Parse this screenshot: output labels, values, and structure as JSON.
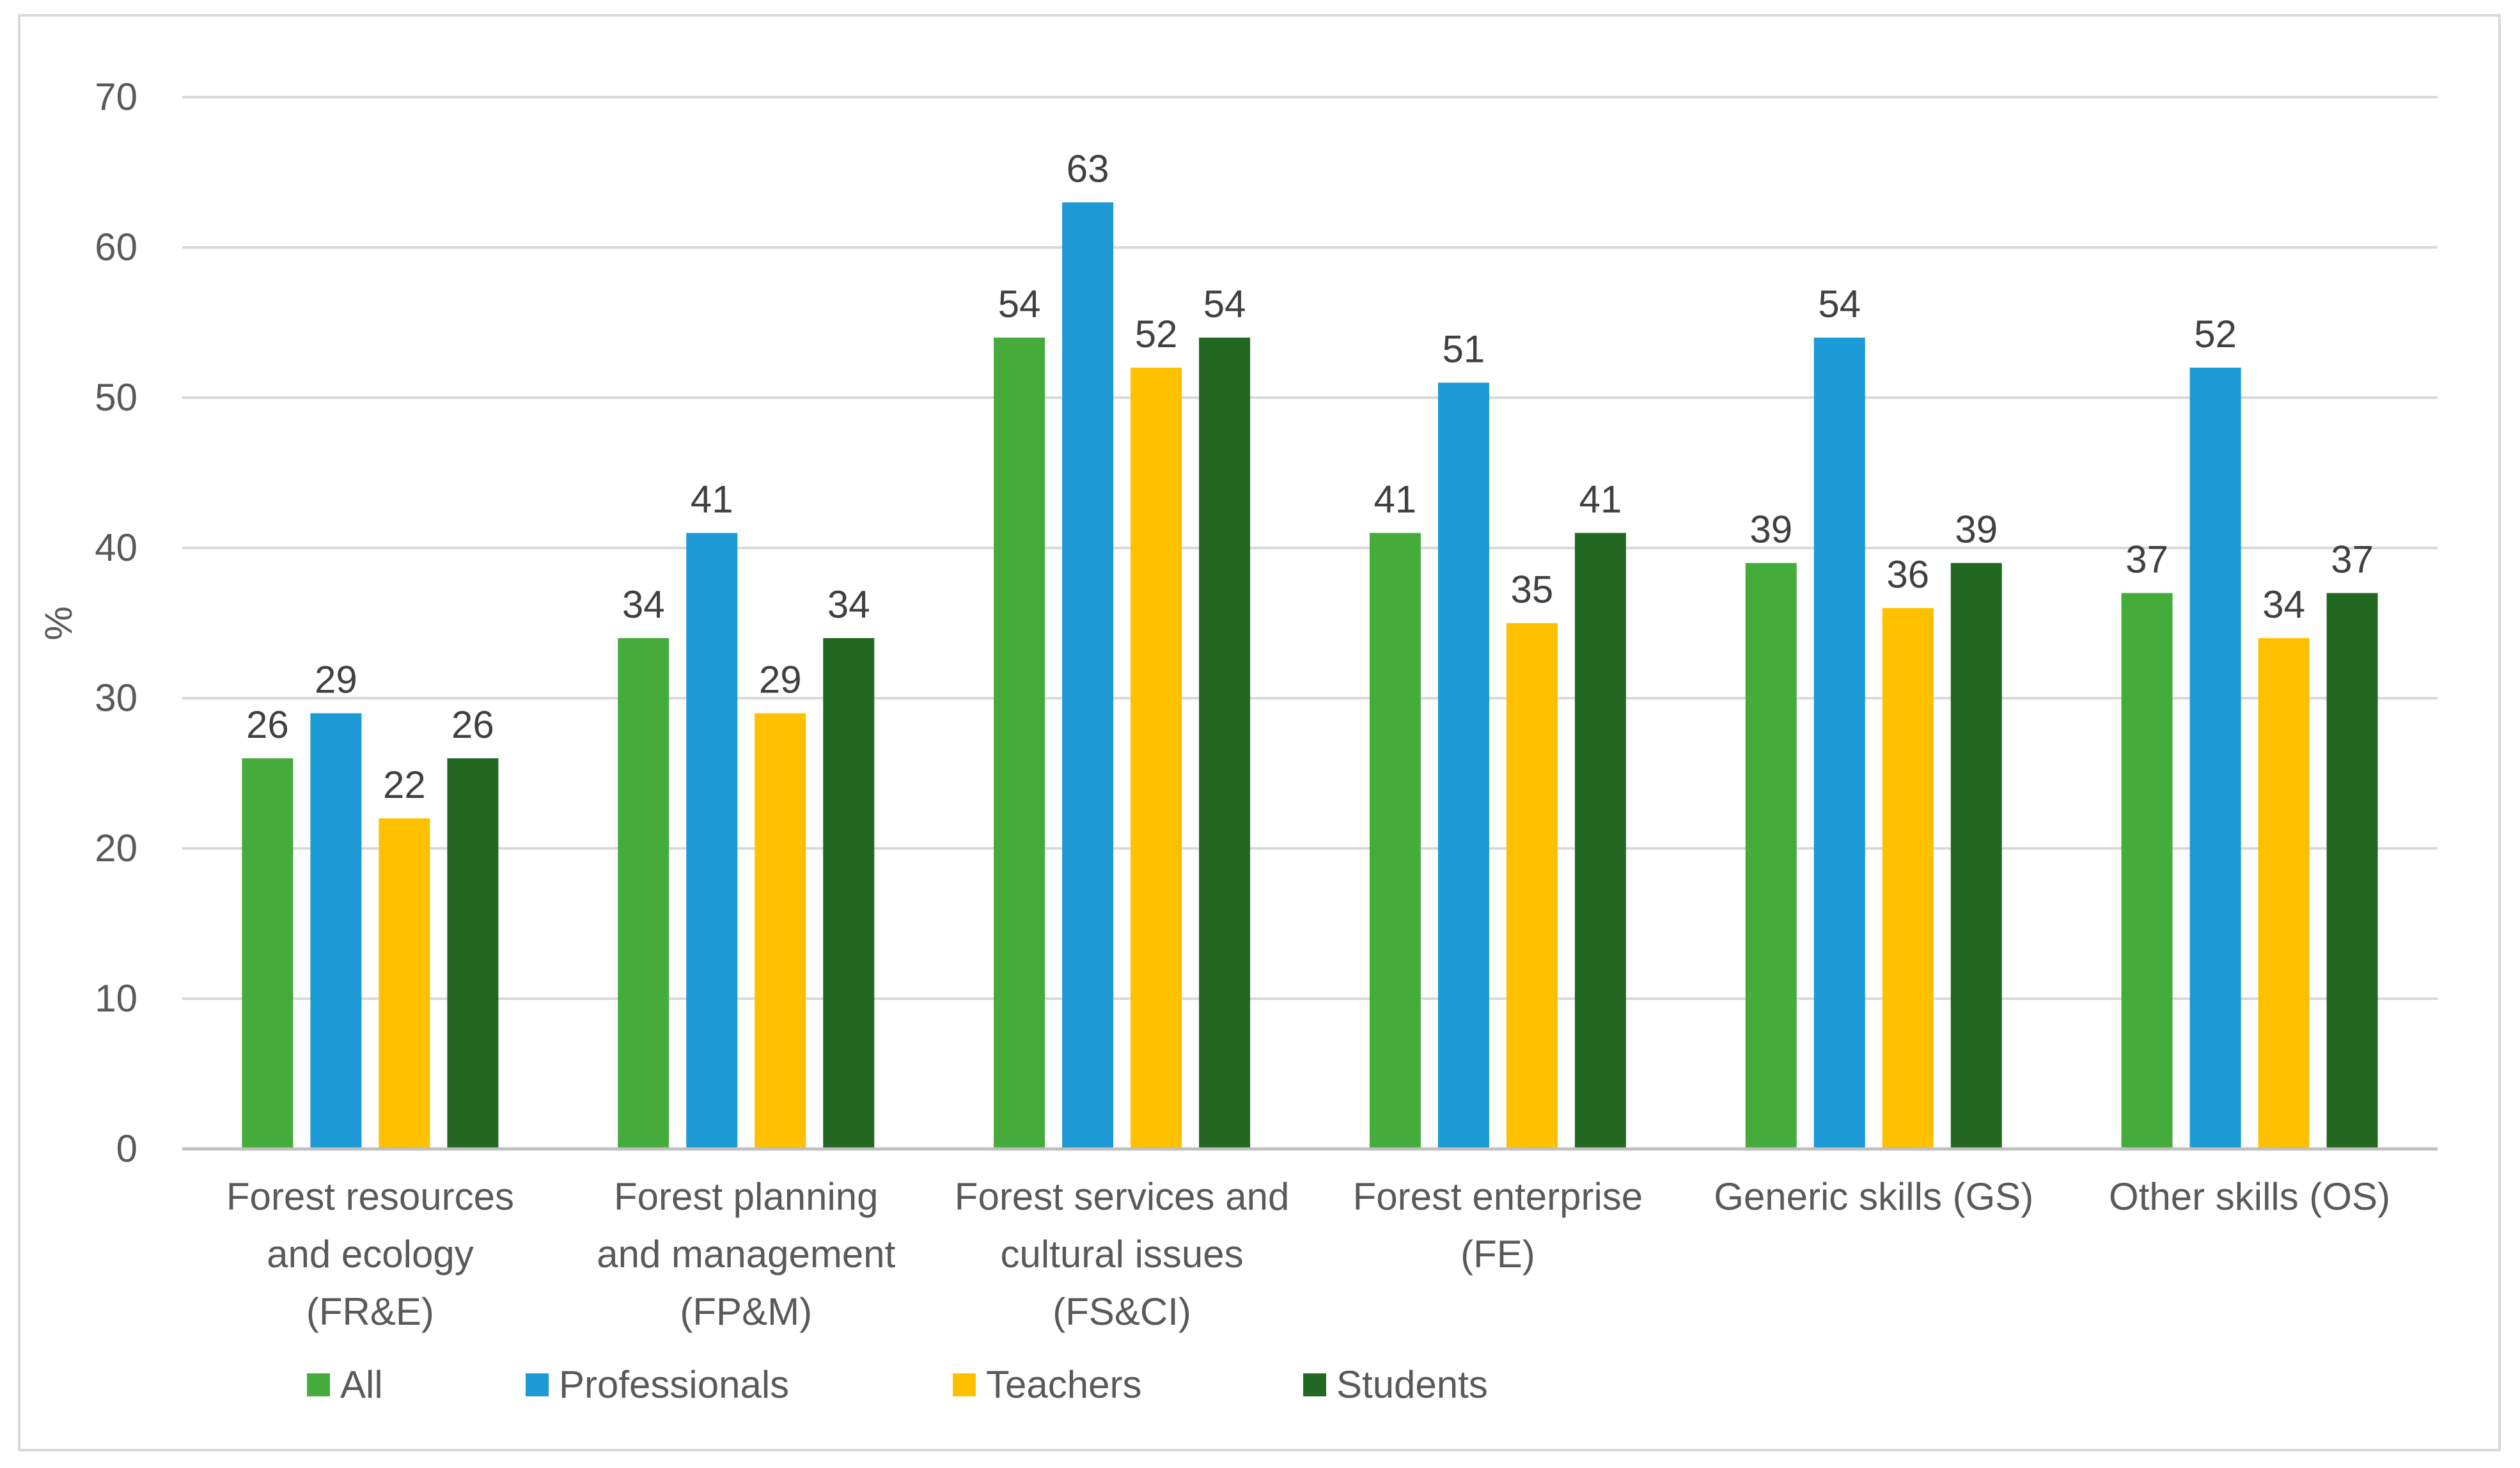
{
  "chart_data": {
    "type": "bar",
    "title": "",
    "xlabel": "",
    "ylabel": "%",
    "ylim": [
      0,
      70
    ],
    "yticks": [
      0,
      10,
      20,
      30,
      40,
      50,
      60,
      70
    ],
    "grid": true,
    "legend_position": "bottom-left",
    "categories": [
      [
        "Forest resources",
        "and ecology",
        "(FR&E)"
      ],
      [
        "Forest planning",
        "and management",
        "(FP&M)"
      ],
      [
        "Forest services and",
        "cultural issues",
        "(FS&CI)"
      ],
      [
        "Forest enterprise",
        "(FE)"
      ],
      [
        "Generic skills (GS)"
      ],
      [
        "Other skills (OS)"
      ]
    ],
    "series": [
      {
        "name": "All",
        "color": "#45ac3c",
        "values": [
          26,
          34,
          54,
          41,
          39,
          37
        ]
      },
      {
        "name": "Professionals",
        "color": "#1b9ad6",
        "values": [
          29,
          41,
          63,
          51,
          54,
          52
        ]
      },
      {
        "name": "Teachers",
        "color": "#ffc000",
        "values": [
          22,
          29,
          52,
          35,
          36,
          34
        ]
      },
      {
        "name": "Students",
        "color": "#236821",
        "values": [
          26,
          34,
          54,
          41,
          39,
          37
        ]
      }
    ],
    "gridline_color": "#d9d9d9",
    "axis_color": "#bfbfbf"
  }
}
